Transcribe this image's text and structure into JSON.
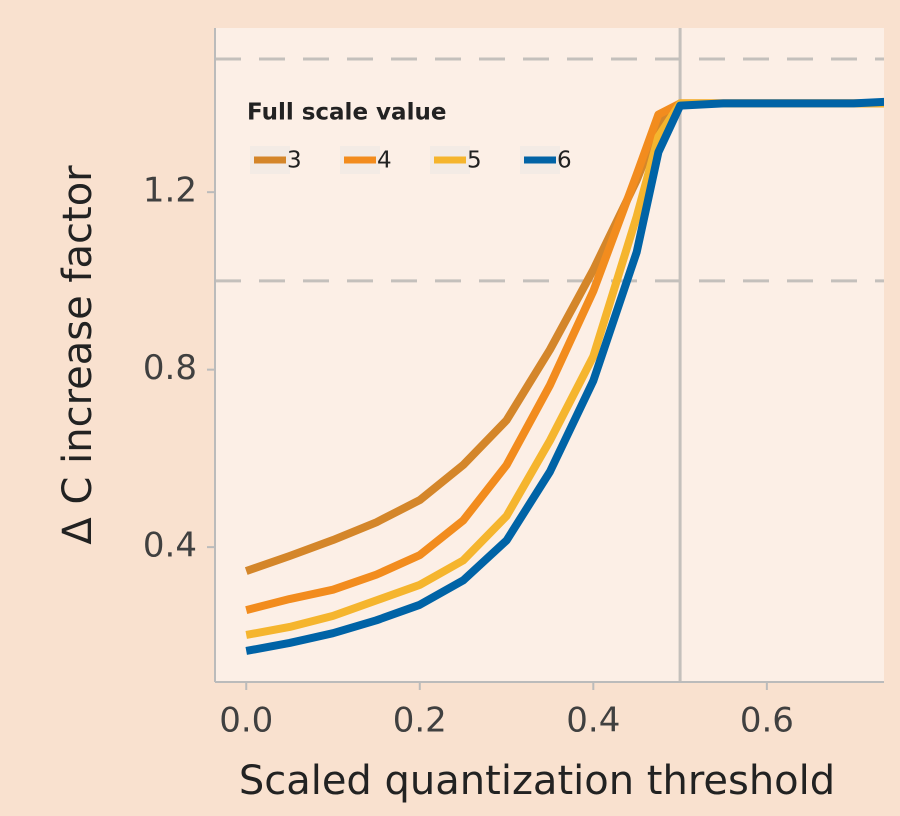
{
  "chart_data": {
    "type": "line",
    "x_label": "Scaled quantization threshold",
    "y_label": "Δ C increase factor",
    "legend_title": "Full scale value",
    "legend_position": "upper left",
    "x": [
      0,
      0.05,
      0.1,
      0.15,
      0.2,
      0.25,
      0.3,
      0.35,
      0.4,
      0.45,
      0.475,
      0.5,
      0.55,
      0.6,
      0.65,
      0.7,
      0.75
    ],
    "series": [
      {
        "name": "3",
        "color": "#d4862a",
        "values": [
          0.346,
          0.38,
          0.416,
          0.456,
          0.506,
          0.585,
          0.686,
          0.845,
          1.025,
          1.227,
          1.35,
          1.4,
          1.4,
          1.4,
          1.4,
          1.4,
          1.4
        ]
      },
      {
        "name": "4",
        "color": "#f28c1e",
        "values": [
          0.258,
          0.283,
          0.304,
          0.338,
          0.382,
          0.46,
          0.585,
          0.765,
          0.977,
          1.24,
          1.375,
          1.4,
          1.4,
          1.4,
          1.4,
          1.4,
          1.4
        ]
      },
      {
        "name": "5",
        "color": "#f5b52e",
        "values": [
          0.202,
          0.22,
          0.245,
          0.28,
          0.315,
          0.37,
          0.47,
          0.64,
          0.83,
          1.145,
          1.325,
          1.4,
          1.4,
          1.4,
          1.4,
          1.4,
          1.4
        ]
      },
      {
        "name": "6",
        "color": "#0063a6",
        "values": [
          0.166,
          0.184,
          0.206,
          0.235,
          0.27,
          0.325,
          0.415,
          0.57,
          0.775,
          1.065,
          1.29,
          1.395,
          1.4,
          1.4,
          1.4,
          1.4,
          1.405
        ]
      }
    ],
    "xlim": [
      -0.036,
      0.735
    ],
    "ylim": [
      0.096,
      1.57
    ],
    "xticks": [
      {
        "value": 0,
        "label": "0.0"
      },
      0.2,
      0.4,
      0.6
    ],
    "yticks": [
      0.4,
      0.8,
      1.2
    ],
    "hlines": [
      1.0,
      1.5
    ],
    "vline": 0.5
  }
}
